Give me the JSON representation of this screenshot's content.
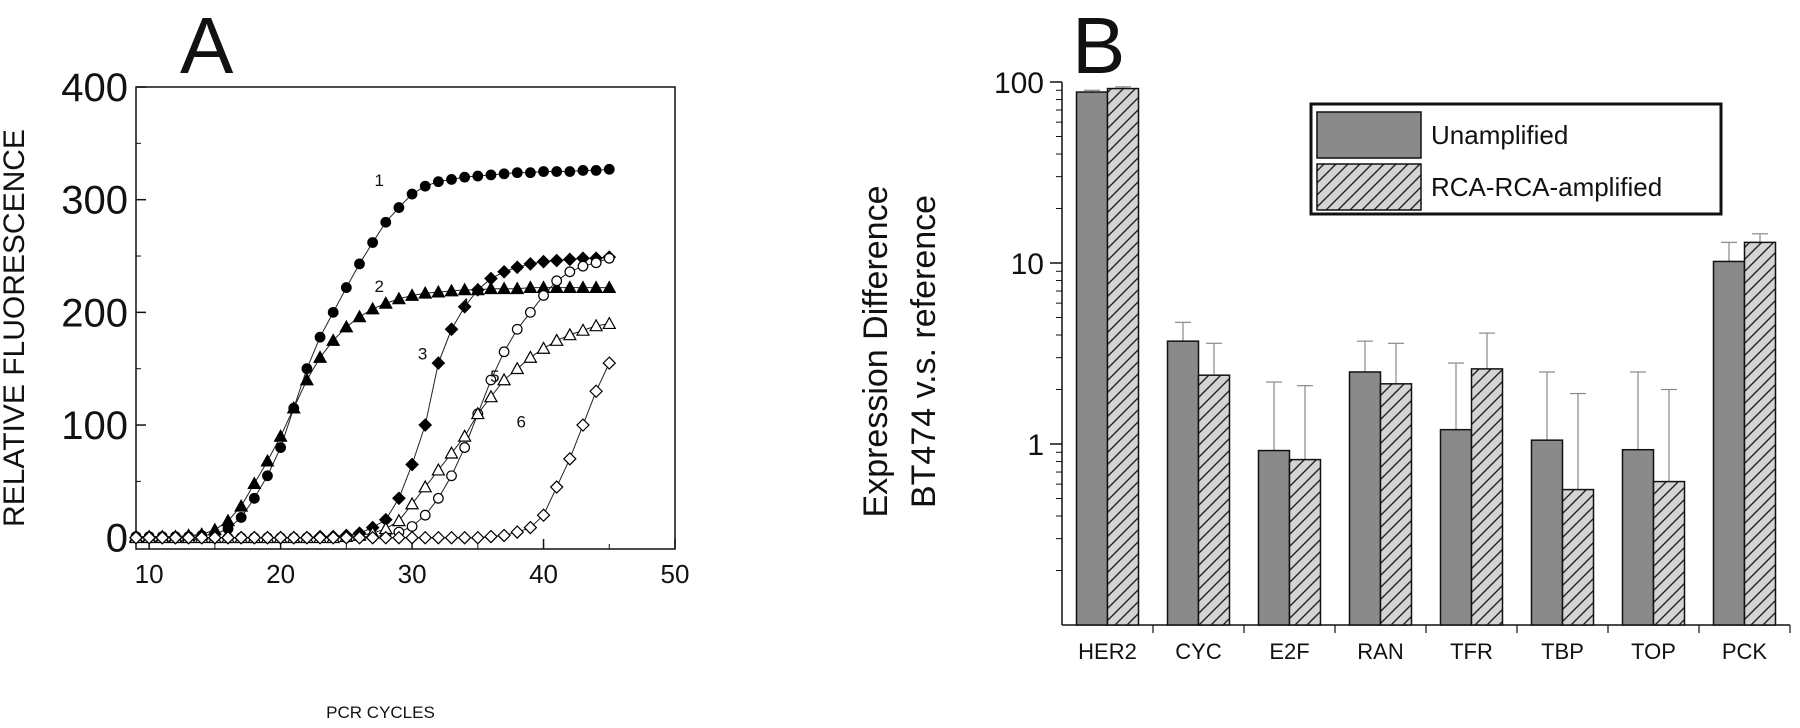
{
  "panels": {
    "a": {
      "letter": "A"
    },
    "b": {
      "letter": "B"
    }
  },
  "chart_data": [
    {
      "type": "line",
      "panel": "A",
      "xlabel": "PCR CYCLES",
      "ylabel": "RELATIVE FLUORESCENCE",
      "xlim": [
        9,
        50
      ],
      "ylim": [
        -10,
        400
      ],
      "xticks": [
        10,
        20,
        30,
        40,
        50
      ],
      "yticks": [
        0,
        100,
        200,
        300,
        400
      ],
      "grid": false,
      "legend": "none",
      "series": [
        {
          "name": "1",
          "marker": "filled-circle",
          "x": [
            9,
            10,
            11,
            12,
            13,
            14,
            15,
            16,
            17,
            18,
            19,
            20,
            21,
            22,
            23,
            24,
            25,
            26,
            27,
            28,
            29,
            30,
            31,
            32,
            33,
            34,
            35,
            36,
            37,
            38,
            39,
            40,
            41,
            42,
            43,
            44,
            45
          ],
          "y": [
            1,
            1,
            1,
            1,
            1,
            2,
            3,
            8,
            18,
            35,
            55,
            80,
            115,
            150,
            178,
            200,
            222,
            243,
            262,
            280,
            293,
            305,
            312,
            316,
            318,
            320,
            321,
            322,
            323,
            324,
            324,
            325,
            325,
            325,
            326,
            326,
            327
          ]
        },
        {
          "name": "2",
          "marker": "filled-triangle",
          "x": [
            9,
            10,
            11,
            12,
            13,
            14,
            15,
            16,
            17,
            18,
            19,
            20,
            21,
            22,
            23,
            24,
            25,
            26,
            27,
            28,
            29,
            30,
            31,
            32,
            33,
            34,
            35,
            36,
            37,
            38,
            39,
            40,
            41,
            42,
            43,
            44,
            45
          ],
          "y": [
            1,
            1,
            1,
            1,
            2,
            3,
            7,
            15,
            28,
            48,
            68,
            90,
            115,
            140,
            160,
            175,
            187,
            196,
            203,
            208,
            212,
            215,
            217,
            218,
            219,
            220,
            220,
            221,
            221,
            221,
            222,
            222,
            222,
            222,
            222,
            222,
            222
          ]
        },
        {
          "name": "3",
          "marker": "filled-diamond",
          "x": [
            9,
            10,
            11,
            12,
            13,
            14,
            15,
            16,
            17,
            18,
            19,
            20,
            21,
            22,
            23,
            24,
            25,
            26,
            27,
            28,
            29,
            30,
            31,
            32,
            33,
            34,
            35,
            36,
            37,
            38,
            39,
            40,
            41,
            42,
            43,
            44,
            45
          ],
          "y": [
            0,
            0,
            0,
            0,
            0,
            0,
            0,
            0,
            0,
            0,
            0,
            0,
            0,
            0,
            1,
            1,
            2,
            4,
            9,
            16,
            35,
            65,
            100,
            155,
            185,
            205,
            220,
            230,
            236,
            240,
            243,
            245,
            246,
            247,
            248,
            248,
            249
          ]
        },
        {
          "name": "4",
          "marker": "open-circle",
          "x": [
            9,
            10,
            11,
            12,
            13,
            14,
            15,
            16,
            17,
            18,
            19,
            20,
            21,
            22,
            23,
            24,
            25,
            26,
            27,
            28,
            29,
            30,
            31,
            32,
            33,
            34,
            35,
            36,
            37,
            38,
            39,
            40,
            41,
            42,
            43,
            44,
            45
          ],
          "y": [
            0,
            0,
            0,
            0,
            0,
            0,
            0,
            0,
            0,
            0,
            0,
            0,
            0,
            0,
            0,
            0,
            0,
            1,
            1,
            2,
            5,
            10,
            20,
            35,
            55,
            80,
            110,
            140,
            165,
            185,
            200,
            215,
            228,
            236,
            241,
            244,
            248
          ]
        },
        {
          "name": "5",
          "marker": "open-triangle",
          "x": [
            9,
            10,
            11,
            12,
            13,
            14,
            15,
            16,
            17,
            18,
            19,
            20,
            21,
            22,
            23,
            24,
            25,
            26,
            27,
            28,
            29,
            30,
            31,
            32,
            33,
            34,
            35,
            36,
            37,
            38,
            39,
            40,
            41,
            42,
            43,
            44,
            45
          ],
          "y": [
            0,
            0,
            0,
            0,
            0,
            0,
            0,
            0,
            0,
            0,
            0,
            0,
            0,
            0,
            0,
            0,
            1,
            2,
            4,
            8,
            15,
            30,
            45,
            60,
            75,
            90,
            110,
            125,
            140,
            150,
            160,
            168,
            175,
            180,
            184,
            188,
            190
          ]
        },
        {
          "name": "6",
          "marker": "open-diamond",
          "x": [
            9,
            10,
            11,
            12,
            13,
            14,
            15,
            16,
            17,
            18,
            19,
            20,
            21,
            22,
            23,
            24,
            25,
            26,
            27,
            28,
            29,
            30,
            31,
            32,
            33,
            34,
            35,
            36,
            37,
            38,
            39,
            40,
            41,
            42,
            43,
            44,
            45
          ],
          "y": [
            0,
            0,
            0,
            0,
            0,
            0,
            0,
            0,
            0,
            0,
            0,
            0,
            0,
            0,
            0,
            0,
            0,
            0,
            0,
            0,
            0,
            0,
            0,
            0,
            0,
            0,
            0,
            1,
            2,
            5,
            9,
            20,
            45,
            70,
            100,
            130,
            155
          ]
        }
      ]
    },
    {
      "type": "bar",
      "panel": "B",
      "ylabel_lines": [
        "Expression Difference",
        "BT474 v.s. reference"
      ],
      "yscale": "log",
      "ylim": [
        0.1,
        100
      ],
      "yticks": [
        1,
        10,
        100
      ],
      "categories": [
        "HER2",
        "CYC",
        "E2F",
        "RAN",
        "TFR",
        "TBP",
        "TOP",
        "PCK"
      ],
      "grid": false,
      "legend": "top-right",
      "series": [
        {
          "name": "Unamplified",
          "fill": "#8a8a8a",
          "pattern": "solid",
          "values": [
            88,
            3.7,
            0.92,
            2.5,
            1.2,
            1.05,
            0.93,
            10.2
          ],
          "errors": [
            90,
            4.7,
            2.2,
            3.7,
            2.8,
            2.5,
            2.5,
            13.0
          ]
        },
        {
          "name": "RCA-RCA-amplified",
          "fill": "#d4d4d4",
          "pattern": "hatched",
          "values": [
            92,
            2.4,
            0.82,
            2.15,
            2.6,
            0.56,
            0.62,
            13.0
          ],
          "errors": [
            94,
            3.6,
            2.1,
            3.6,
            4.1,
            1.9,
            2.0,
            14.5
          ]
        }
      ]
    }
  ]
}
